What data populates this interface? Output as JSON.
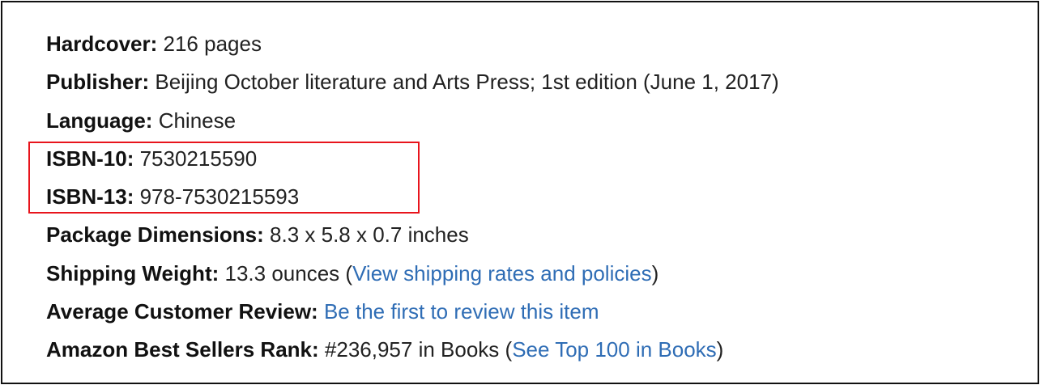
{
  "details": [
    {
      "label": "Hardcover:",
      "value": "216 pages"
    },
    {
      "label": "Publisher:",
      "value": "Beijing October literature and Arts Press; 1st edition (June 1, 2017)"
    },
    {
      "label": "Language:",
      "value": "Chinese"
    },
    {
      "label": "ISBN-10:",
      "value": "7530215590"
    },
    {
      "label": "ISBN-13:",
      "value": "978-7530215593"
    },
    {
      "label": "Package Dimensions:",
      "value": "8.3 x 5.8 x 0.7 inches"
    },
    {
      "label": "Shipping Weight:",
      "value": "13.3 ounces (",
      "link": "View shipping rates and policies",
      "suffix": ")"
    },
    {
      "label": "Average Customer Review:",
      "link": "Be the first to review this item"
    },
    {
      "label": "Amazon Best Sellers Rank:",
      "value": "#236,957 in Books (",
      "link": "See Top 100 in Books",
      "suffix": ")"
    }
  ],
  "colors": {
    "link": "#2f6db5",
    "highlight_box": "#e8141c",
    "text": "#222222"
  }
}
